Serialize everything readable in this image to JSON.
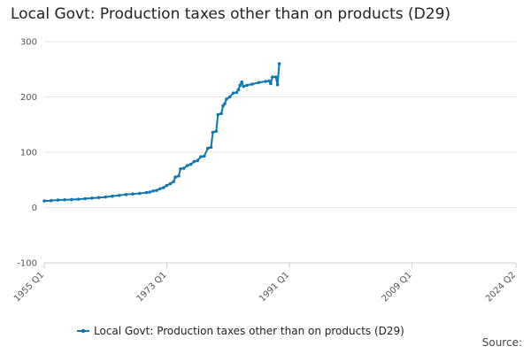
{
  "chart_data": {
    "type": "line",
    "title": "Local Govt: Production taxes other than on products (D29)",
    "xlabel": "",
    "ylabel": "",
    "ylim": [
      -100,
      300
    ],
    "yticks": [
      -100,
      0,
      100,
      200,
      300
    ],
    "x_range": [
      1955.0,
      2024.25
    ],
    "xticks": [
      {
        "label": "1955 Q1",
        "value": 1955.0
      },
      {
        "label": "1973 Q1",
        "value": 1973.0
      },
      {
        "label": "1991 Q1",
        "value": 1991.0
      },
      {
        "label": "2009 Q1",
        "value": 2009.0
      },
      {
        "label": "2024 Q2",
        "value": 2024.25
      }
    ],
    "grid": true,
    "legend_position": "bottom",
    "series": [
      {
        "name": "Local Govt: Production taxes other than on products (D29)",
        "color": "#0e76b3",
        "points": [
          [
            1955.0,
            12
          ],
          [
            1956.0,
            12.5
          ],
          [
            1957.0,
            13.5
          ],
          [
            1958.0,
            14
          ],
          [
            1959.0,
            14.5
          ],
          [
            1960.0,
            15
          ],
          [
            1961.0,
            16
          ],
          [
            1962.0,
            17
          ],
          [
            1963.0,
            18
          ],
          [
            1964.0,
            19
          ],
          [
            1965.0,
            20.5
          ],
          [
            1966.0,
            22
          ],
          [
            1967.0,
            23.5
          ],
          [
            1968.0,
            24.5
          ],
          [
            1969.0,
            25.5
          ],
          [
            1970.0,
            27
          ],
          [
            1970.5,
            28
          ],
          [
            1971.0,
            30
          ],
          [
            1971.5,
            31
          ],
          [
            1972.0,
            34
          ],
          [
            1972.5,
            36
          ],
          [
            1973.0,
            40
          ],
          [
            1973.5,
            43
          ],
          [
            1974.0,
            47
          ],
          [
            1974.25,
            55
          ],
          [
            1974.75,
            57
          ],
          [
            1975.0,
            70
          ],
          [
            1975.5,
            71
          ],
          [
            1976.0,
            76
          ],
          [
            1976.5,
            78
          ],
          [
            1977.0,
            83
          ],
          [
            1977.5,
            85
          ],
          [
            1978.0,
            92
          ],
          [
            1978.5,
            93
          ],
          [
            1979.0,
            107
          ],
          [
            1979.5,
            109
          ],
          [
            1979.75,
            136
          ],
          [
            1980.25,
            138
          ],
          [
            1980.5,
            168
          ],
          [
            1981.0,
            170
          ],
          [
            1981.25,
            184
          ],
          [
            1981.5,
            188
          ],
          [
            1981.75,
            196
          ],
          [
            1982.25,
            200
          ],
          [
            1982.75,
            207
          ],
          [
            1983.25,
            208
          ],
          [
            1983.5,
            213
          ],
          [
            1983.75,
            221
          ],
          [
            1984.0,
            227
          ],
          [
            1984.25,
            219
          ],
          [
            1984.75,
            221
          ],
          [
            1985.5,
            223
          ],
          [
            1986.5,
            226
          ],
          [
            1987.5,
            228
          ],
          [
            1988.0,
            229
          ],
          [
            1988.25,
            224
          ],
          [
            1988.5,
            236
          ],
          [
            1989.0,
            236
          ],
          [
            1989.25,
            222
          ],
          [
            1989.5,
            260
          ]
        ]
      }
    ]
  },
  "footer": {
    "source_label": "Source:"
  }
}
